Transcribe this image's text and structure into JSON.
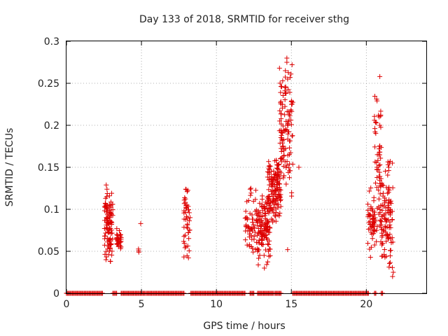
{
  "chart_data": {
    "type": "scatter",
    "title": "Day 133 of 2018, SRMTID for receiver sthg",
    "xlabel": "GPS time / hours",
    "ylabel": "SRMTID / TECUs",
    "xlim": [
      0,
      24
    ],
    "ylim": [
      0,
      0.3
    ],
    "xticks": [
      0,
      5,
      10,
      15,
      20
    ],
    "yticks": [
      0,
      0.05,
      0.1,
      0.15,
      0.2,
      0.25,
      0.3
    ],
    "xtick_labels": [
      "0",
      "5",
      "10",
      "15",
      "20"
    ],
    "ytick_labels": [
      "0",
      "0.05",
      "0.1",
      "0.15",
      "0.2",
      "0.25",
      "0.3"
    ],
    "grid": true,
    "marker": "+",
    "marker_color": "#dd0000",
    "zero_segments": [
      [
        0.0,
        2.45
      ],
      [
        3.1,
        3.4
      ],
      [
        3.65,
        5.25
      ],
      [
        5.35,
        7.9
      ],
      [
        8.3,
        11.95
      ],
      [
        12.25,
        12.55
      ],
      [
        12.75,
        13.8
      ],
      [
        13.9,
        14.3
      ],
      [
        15.1,
        20.2
      ],
      [
        20.55,
        20.7
      ],
      [
        21.0,
        21.15
      ]
    ],
    "clusters": [
      {
        "x_range": [
          2.5,
          3.1
        ],
        "y_range": [
          0.03,
          0.13
        ],
        "count": 110
      },
      {
        "x_range": [
          3.35,
          3.65
        ],
        "y_range": [
          0.05,
          0.08
        ],
        "count": 35
      },
      {
        "x_range": [
          4.7,
          4.85
        ],
        "y_range": [
          0.048,
          0.056
        ],
        "count": 3
      },
      {
        "x_range": [
          7.8,
          8.25
        ],
        "y_range": [
          0.035,
          0.125
        ],
        "count": 45
      },
      {
        "x_range": [
          11.9,
          12.7
        ],
        "y_range": [
          0.045,
          0.125
        ],
        "count": 55
      },
      {
        "x_range": [
          12.7,
          13.6
        ],
        "y_range": [
          0.03,
          0.12
        ],
        "count": 130
      },
      {
        "x_range": [
          13.4,
          14.3
        ],
        "y_range": [
          0.075,
          0.17
        ],
        "count": 140
      },
      {
        "x_range": [
          14.2,
          15.1
        ],
        "y_range": [
          0.1,
          0.28
        ],
        "count": 120
      },
      {
        "x_range": [
          20.1,
          20.6
        ],
        "y_range": [
          0.04,
          0.13
        ],
        "count": 55
      },
      {
        "x_range": [
          20.5,
          21.0
        ],
        "y_range": [
          0.055,
          0.26
        ],
        "count": 55
      },
      {
        "x_range": [
          20.9,
          21.8
        ],
        "y_range": [
          0.02,
          0.16
        ],
        "count": 110
      }
    ],
    "extra_points": [
      [
        4.95,
        0.083
      ],
      [
        15.5,
        0.15
      ],
      [
        14.75,
        0.052
      ],
      [
        20.9,
        0.258
      ],
      [
        20.85,
        0.21
      ],
      [
        20.9,
        0.2
      ],
      [
        20.85,
        0.172
      ],
      [
        14.7,
        0.28
      ],
      [
        14.7,
        0.275
      ],
      [
        14.6,
        0.265
      ],
      [
        14.75,
        0.255
      ],
      [
        14.6,
        0.245
      ],
      [
        14.65,
        0.238
      ],
      [
        2.65,
        0.129
      ],
      [
        2.7,
        0.124
      ],
      [
        7.95,
        0.124
      ],
      [
        8.05,
        0.121
      ],
      [
        12.3,
        0.125
      ],
      [
        12.25,
        0.124
      ],
      [
        21.55,
        0.155
      ],
      [
        21.45,
        0.153
      ],
      [
        21.5,
        0.15
      ],
      [
        21.75,
        0.02
      ],
      [
        21.8,
        0.025
      ],
      [
        13.2,
        0.03
      ]
    ]
  }
}
